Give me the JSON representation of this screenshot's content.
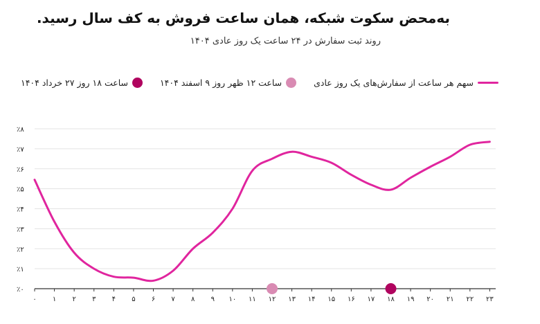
{
  "colors": {
    "line": "#e0259e",
    "dot_dark": "#b0045f",
    "dot_light": "#d98bb3",
    "grid": "#e3e3e3",
    "axis": "#333333"
  },
  "chart_data": {
    "type": "line",
    "title": "به‌محض سکوت شبکه، همان ساعت فروش به کف سال رسید.",
    "subtitle": "روند ثبت سفارش در ۲۴ ساعت یک روز عادی ۱۴۰۴",
    "xlabel": "",
    "ylabel": "",
    "x": [
      0,
      1,
      2,
      3,
      4,
      5,
      6,
      7,
      8,
      9,
      10,
      11,
      12,
      13,
      14,
      15,
      16,
      17,
      18,
      19,
      20,
      21,
      22,
      23
    ],
    "x_tick_labels": [
      "۰",
      "۱",
      "۲",
      "۳",
      "۴",
      "۵",
      "۶",
      "۷",
      "۸",
      "۹",
      "۱۰",
      "۱۱",
      "۱۲",
      "۱۳",
      "۱۴",
      "۱۵",
      "۱۶",
      "۱۷",
      "۱۸",
      "۱۹",
      "۲۰",
      "۲۱",
      "۲۲",
      "۲۳"
    ],
    "ylim": [
      0,
      8
    ],
    "y_ticks": [
      0,
      1,
      2,
      3,
      4,
      5,
      6,
      7,
      8
    ],
    "y_tick_labels": [
      "٪۰",
      "٪۱",
      "٪۲",
      "٪۳",
      "٪۴",
      "٪۵",
      "٪۶",
      "٪۷",
      "٪۸"
    ],
    "grid": "horizontal",
    "series": [
      {
        "name": "سهم هر ساعت از سفارش‌های یک روز عادی",
        "x": [
          0,
          1,
          2,
          3,
          4,
          5,
          6,
          7,
          8,
          9,
          10,
          11,
          12,
          13,
          14,
          15,
          16,
          17,
          18,
          19,
          20,
          21,
          22,
          23
        ],
        "values": [
          5.45,
          3.35,
          1.8,
          1.0,
          0.6,
          0.55,
          0.4,
          0.9,
          2.0,
          2.8,
          4.0,
          5.9,
          6.5,
          6.85,
          6.6,
          6.3,
          5.7,
          5.2,
          4.95,
          5.55,
          6.1,
          6.6,
          7.2,
          7.35
        ]
      }
    ],
    "markers": [
      {
        "name": "ساعت ۱۲ ظهر روز ۹ اسفند ۱۴۰۴",
        "x": 12,
        "y": 0,
        "color": "#d98bb3"
      },
      {
        "name": "ساعت ۱۸ روز ۲۷ خرداد ۱۴۰۴",
        "x": 18,
        "y": 0,
        "color": "#b0045f"
      }
    ],
    "legend_position": "top"
  }
}
